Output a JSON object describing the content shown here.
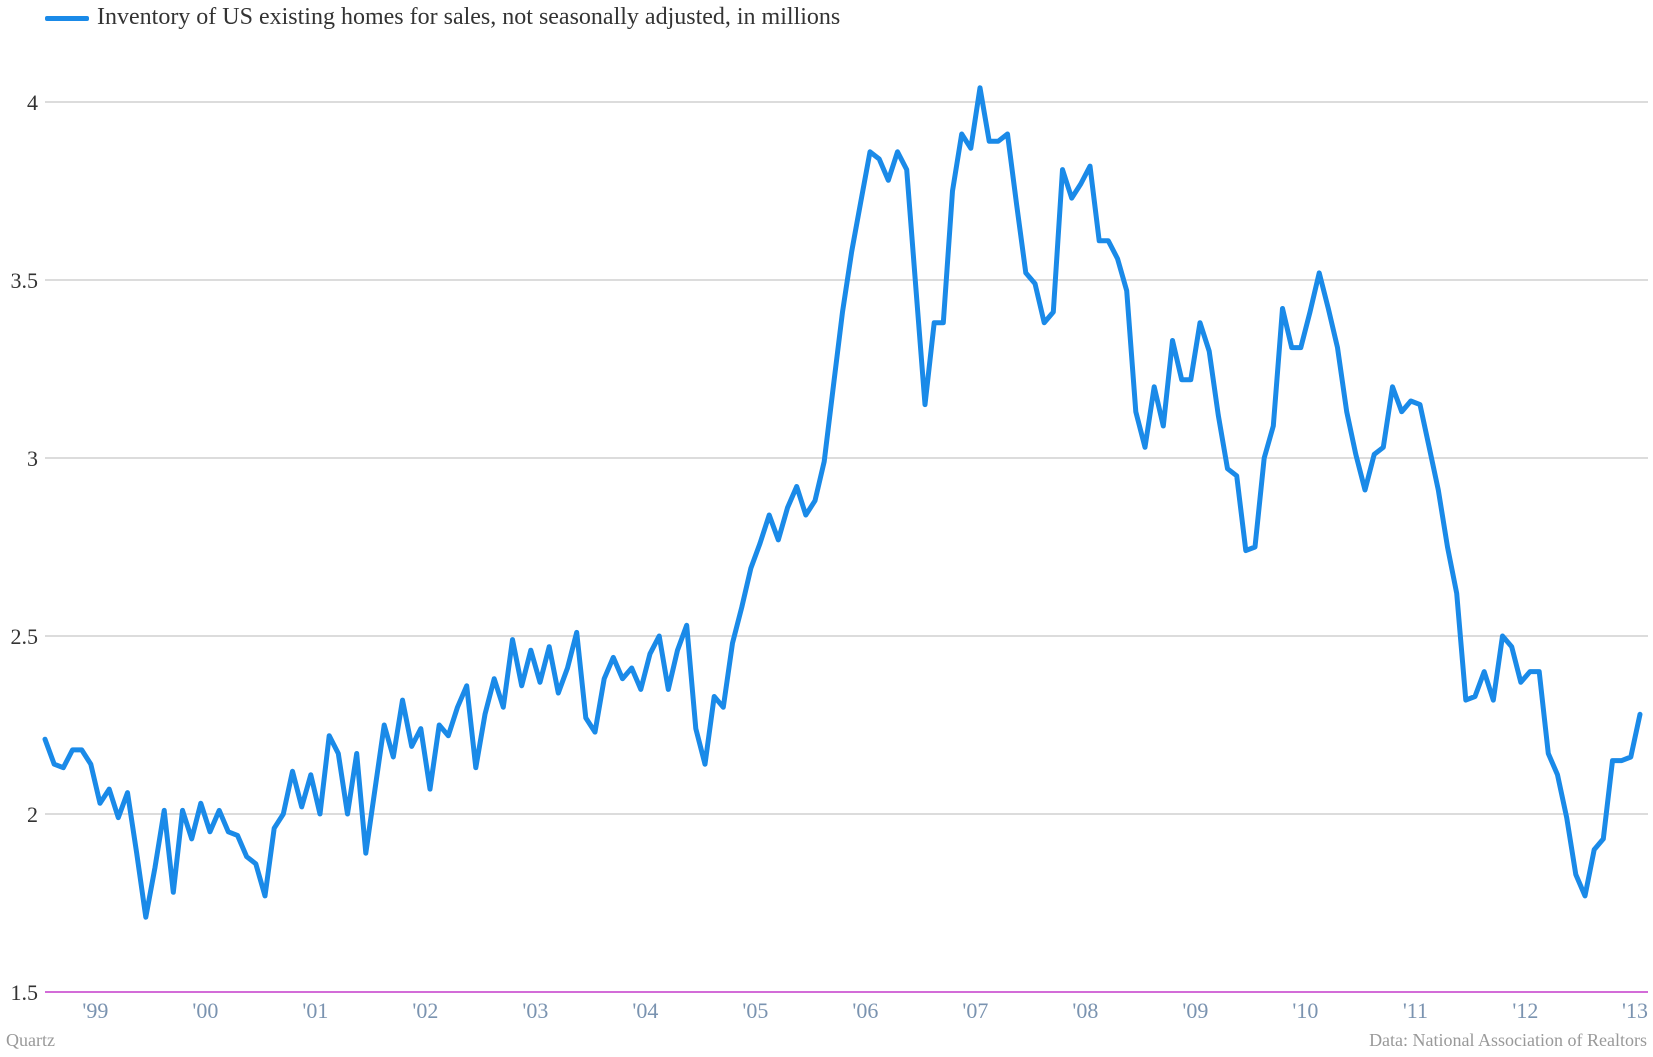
{
  "chart_data": {
    "type": "line",
    "legend": {
      "placement": "top-left"
    },
    "grid": true,
    "ylim": [
      1.5,
      4.0
    ],
    "yticks": [
      "1.5",
      "2",
      "2.5",
      "3",
      "3.5",
      "4"
    ],
    "xticks": [
      "'99",
      "'00",
      "'01",
      "'02",
      "'03",
      "'04",
      "'05",
      "'06",
      "'07",
      "'08",
      "'09",
      "'10",
      "'11",
      "'12",
      "'13"
    ],
    "x_start": "1999-01",
    "series": [
      {
        "name": "Inventory of US existing homes for sales, not seasonally adjusted, in millions",
        "color": "#1a8ae8",
        "values": [
          2.21,
          2.14,
          2.13,
          2.18,
          2.18,
          2.14,
          2.03,
          2.07,
          1.99,
          2.06,
          1.89,
          1.71,
          1.85,
          2.01,
          1.78,
          2.01,
          1.93,
          2.03,
          1.95,
          2.01,
          1.95,
          1.94,
          1.88,
          1.86,
          1.77,
          1.96,
          2.0,
          2.12,
          2.02,
          2.11,
          2.0,
          2.22,
          2.17,
          2.0,
          2.17,
          1.89,
          2.07,
          2.25,
          2.16,
          2.32,
          2.19,
          2.24,
          2.07,
          2.25,
          2.22,
          2.3,
          2.36,
          2.13,
          2.28,
          2.38,
          2.3,
          2.49,
          2.36,
          2.46,
          2.37,
          2.47,
          2.34,
          2.41,
          2.51,
          2.27,
          2.23,
          2.38,
          2.44,
          2.38,
          2.41,
          2.35,
          2.45,
          2.5,
          2.35,
          2.46,
          2.53,
          2.24,
          2.14,
          2.33,
          2.3,
          2.48,
          2.58,
          2.69,
          2.76,
          2.84,
          2.77,
          2.86,
          2.92,
          2.84,
          2.88,
          2.99,
          3.2,
          3.41,
          3.58,
          3.72,
          3.86,
          3.84,
          3.78,
          3.86,
          3.81,
          3.48,
          3.15,
          3.38,
          3.38,
          3.75,
          3.91,
          3.87,
          4.04,
          3.89,
          3.89,
          3.91,
          3.71,
          3.52,
          3.49,
          3.38,
          3.41,
          3.81,
          3.73,
          3.77,
          3.82,
          3.61,
          3.61,
          3.56,
          3.47,
          3.13,
          3.03,
          3.2,
          3.09,
          3.33,
          3.22,
          3.22,
          3.38,
          3.3,
          3.12,
          2.97,
          2.95,
          2.74,
          2.75,
          3.0,
          3.09,
          3.42,
          3.31,
          3.31,
          3.41,
          3.52,
          3.42,
          3.31,
          3.13,
          3.01,
          2.91,
          3.01,
          3.03,
          3.2,
          3.13,
          3.16,
          3.15,
          3.03,
          2.91,
          2.75,
          2.62,
          2.32,
          2.33,
          2.4,
          2.32,
          2.5,
          2.47,
          2.37,
          2.4,
          2.4,
          2.17,
          2.11,
          1.99,
          1.83,
          1.77,
          1.9,
          1.93,
          2.15,
          2.15,
          2.16,
          2.28
        ]
      }
    ]
  },
  "footer": {
    "source_left": "Quartz",
    "source_right": "Data: National Association of Realtors"
  }
}
